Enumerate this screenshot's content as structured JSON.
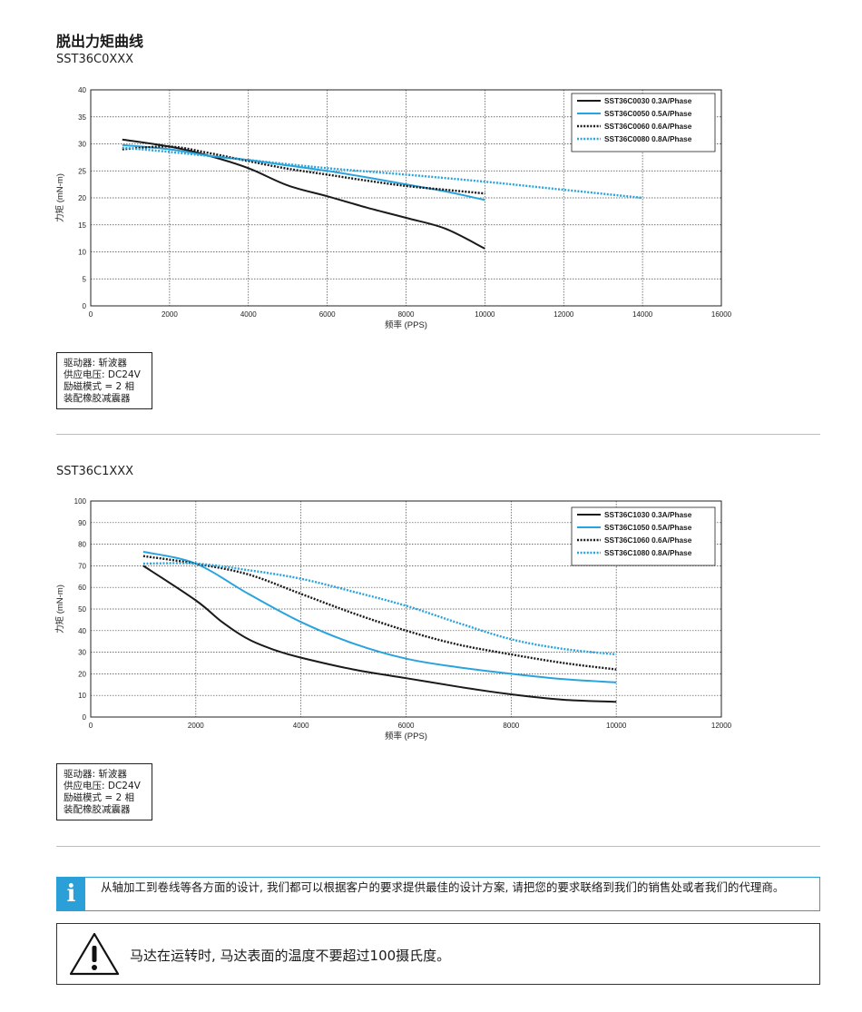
{
  "page": {
    "title": "脱出力矩曲线"
  },
  "sections": [
    {
      "model": "SST36C0XXX",
      "specs": [
        "驱动器: 斩波器",
        "供应电压: DC24V",
        "励磁模式 = 2 相",
        "装配橡胶减震器"
      ]
    },
    {
      "model": "SST36C1XXX",
      "specs": [
        "驱动器: 斩波器",
        "供应电压: DC24V",
        "励磁模式 = 2 相",
        "装配橡胶减震器"
      ]
    }
  ],
  "info": {
    "icon": "info-icon",
    "text": "从轴加工到卷线等各方面的设计, 我们都可以根据客户的要求提供最佳的设计方案, 请把您的要求联络到我们的销售处或者我们的代理商。"
  },
  "warning": {
    "icon": "warning-triangle-icon",
    "text": "马达在运转时, 马达表面的温度不要超过100摄氏度。"
  },
  "colors": {
    "black": "#1a1a1a",
    "blue": "#29a3dd"
  },
  "chart_data": [
    {
      "type": "line",
      "xlabel": "频率 (PPS)",
      "ylabel": "力矩 (mN-m)",
      "xlim": [
        0,
        16000
      ],
      "ylim": [
        0,
        40
      ],
      "x_ticks": [
        0,
        2000,
        4000,
        6000,
        8000,
        10000,
        12000,
        14000,
        16000
      ],
      "y_ticks": [
        0,
        5,
        10,
        15,
        20,
        25,
        30,
        35,
        40
      ],
      "grid": true,
      "legend_position": "top-right",
      "series": [
        {
          "name": "SST36C0030  0.3A/Phase",
          "color": "#1a1a1a",
          "style": "solid",
          "points": [
            [
              800,
              30.8
            ],
            [
              2000,
              29.5
            ],
            [
              3000,
              27.8
            ],
            [
              4000,
              25.5
            ],
            [
              5000,
              22.3
            ],
            [
              6000,
              20.3
            ],
            [
              7000,
              18.2
            ],
            [
              8000,
              16.3
            ],
            [
              9000,
              14.3
            ],
            [
              10000,
              10.6
            ]
          ]
        },
        {
          "name": "SST36C0050  0.5A/Phase",
          "color": "#29a3dd",
          "style": "solid",
          "points": [
            [
              800,
              29.8
            ],
            [
              2000,
              29.0
            ],
            [
              3000,
              27.8
            ],
            [
              4000,
              27.0
            ],
            [
              5000,
              26.0
            ],
            [
              6000,
              25.0
            ],
            [
              7000,
              23.8
            ],
            [
              8000,
              22.5
            ],
            [
              9000,
              21.2
            ],
            [
              10000,
              19.6
            ]
          ]
        },
        {
          "name": "SST36C0060  0.6A/Phase",
          "color": "#1a1a1a",
          "style": "dotted",
          "points": [
            [
              800,
              29.0
            ],
            [
              2000,
              29.5
            ],
            [
              3000,
              28.3
            ],
            [
              4000,
              26.8
            ],
            [
              5000,
              25.4
            ],
            [
              6000,
              24.3
            ],
            [
              7000,
              23.2
            ],
            [
              8000,
              22.2
            ],
            [
              9000,
              21.5
            ],
            [
              10000,
              20.8
            ]
          ]
        },
        {
          "name": "SST36C0080  0.8A/Phase",
          "color": "#29a3dd",
          "style": "dotted",
          "points": [
            [
              800,
              29.3
            ],
            [
              2000,
              28.5
            ],
            [
              4000,
              27.0
            ],
            [
              6000,
              25.5
            ],
            [
              8000,
              24.3
            ],
            [
              10000,
              23.0
            ],
            [
              12000,
              21.5
            ],
            [
              14000,
              20.0
            ]
          ]
        }
      ]
    },
    {
      "type": "line",
      "xlabel": "频率 (PPS)",
      "ylabel": "力矩 (mN-m)",
      "xlim": [
        0,
        12000
      ],
      "ylim": [
        0,
        100
      ],
      "x_ticks": [
        0,
        2000,
        4000,
        6000,
        8000,
        10000,
        12000
      ],
      "y_ticks": [
        0,
        10,
        20,
        30,
        40,
        50,
        60,
        70,
        80,
        90,
        100
      ],
      "grid": true,
      "legend_position": "top-right",
      "series": [
        {
          "name": "SST36C1030  0.3A/Phase",
          "color": "#1a1a1a",
          "style": "solid",
          "points": [
            [
              1000,
              70
            ],
            [
              2000,
              54
            ],
            [
              2500,
              44
            ],
            [
              3000,
              36
            ],
            [
              3500,
              31
            ],
            [
              4000,
              27.5
            ],
            [
              5000,
              22
            ],
            [
              6000,
              18
            ],
            [
              7000,
              14
            ],
            [
              8000,
              10.5
            ],
            [
              9000,
              8
            ],
            [
              10000,
              7
            ]
          ]
        },
        {
          "name": "SST36C1050  0.5A/Phase",
          "color": "#29a3dd",
          "style": "solid",
          "points": [
            [
              1000,
              76.5
            ],
            [
              2000,
              71
            ],
            [
              3000,
              57
            ],
            [
              4000,
              44
            ],
            [
              5000,
              34
            ],
            [
              6000,
              27
            ],
            [
              7000,
              23
            ],
            [
              8000,
              20
            ],
            [
              9000,
              17.5
            ],
            [
              10000,
              16
            ]
          ]
        },
        {
          "name": "SST36C1060  0.6A/Phase",
          "color": "#1a1a1a",
          "style": "dotted",
          "points": [
            [
              1000,
              74.5
            ],
            [
              2000,
              71
            ],
            [
              3000,
              66
            ],
            [
              4000,
              57
            ],
            [
              5000,
              48
            ],
            [
              6000,
              40
            ],
            [
              7000,
              33.5
            ],
            [
              8000,
              29
            ],
            [
              9000,
              25
            ],
            [
              10000,
              22
            ]
          ]
        },
        {
          "name": "SST36C1080  0.8A/Phase",
          "color": "#29a3dd",
          "style": "dotted",
          "points": [
            [
              1000,
              71
            ],
            [
              2000,
              71
            ],
            [
              3000,
              68
            ],
            [
              4000,
              64
            ],
            [
              5000,
              58
            ],
            [
              6000,
              51.5
            ],
            [
              7000,
              43.5
            ],
            [
              8000,
              36
            ],
            [
              9000,
              31.5
            ],
            [
              10000,
              29
            ]
          ]
        }
      ]
    }
  ]
}
